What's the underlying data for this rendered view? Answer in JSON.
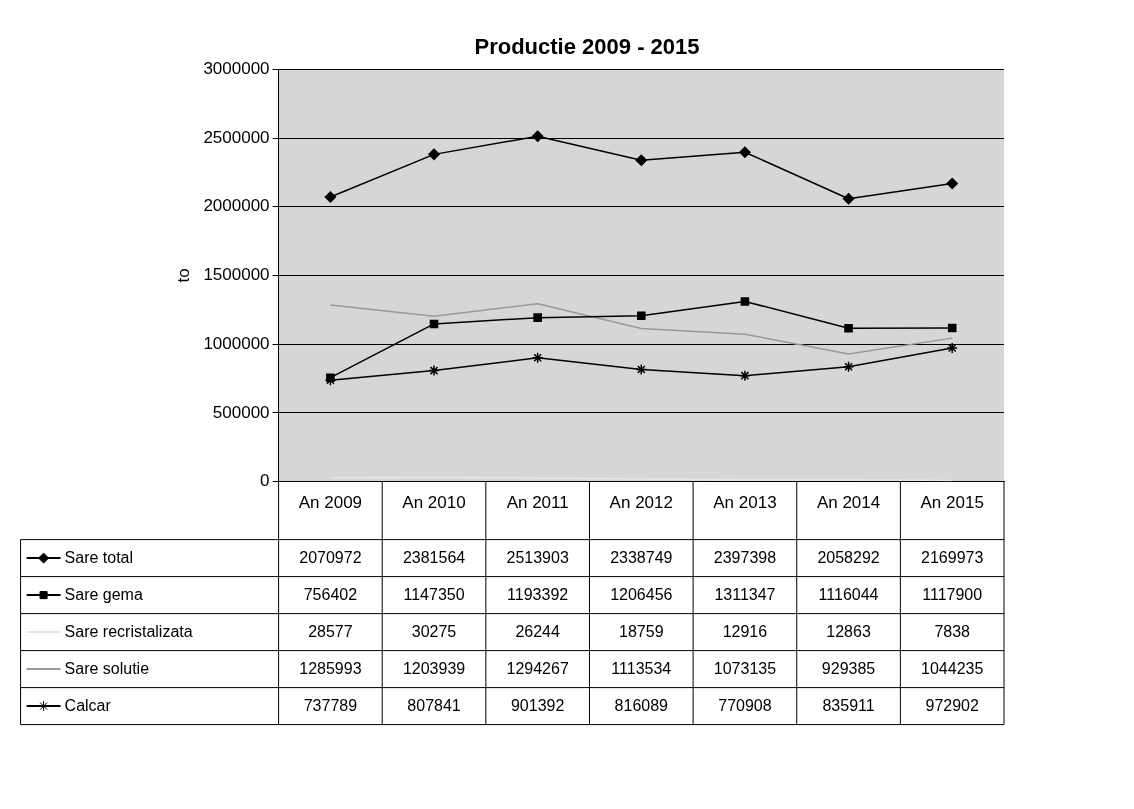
{
  "chart_data": {
    "type": "line",
    "title": "Productie 2009 - 2015",
    "ylabel": "to",
    "categories": [
      "An 2009",
      "An 2010",
      "An 2011",
      "An 2012",
      "An 2013",
      "An 2014",
      "An 2015"
    ],
    "series": [
      {
        "name": "Sare total",
        "color": "#000000",
        "marker": "diamond",
        "values": [
          2070972,
          2381564,
          2513903,
          2338749,
          2397398,
          2058292,
          2169973
        ]
      },
      {
        "name": "Sare gema",
        "color": "#000000",
        "marker": "square",
        "values": [
          756402,
          1147350,
          1193392,
          1206456,
          1311347,
          1116044,
          1117900
        ]
      },
      {
        "name": "Sare recristalizata",
        "color": "#e6e6e6",
        "marker": "none",
        "values": [
          28577,
          30275,
          26244,
          18759,
          12916,
          12863,
          7838
        ]
      },
      {
        "name": "Sare solutie",
        "color": "#999999",
        "marker": "none",
        "values": [
          1285993,
          1203939,
          1294267,
          1113534,
          1073135,
          929385,
          1044235
        ]
      },
      {
        "name": "Calcar",
        "color": "#000000",
        "marker": "cross",
        "values": [
          737789,
          807841,
          901392,
          816089,
          770908,
          835911,
          972902
        ]
      }
    ],
    "ylim": [
      0,
      3000000
    ],
    "yticks": [
      0,
      500000,
      1000000,
      1500000,
      2000000,
      2500000,
      3000000
    ],
    "grid": "y",
    "legend": "bottom left",
    "data_labels": true,
    "line_style": "solid"
  }
}
